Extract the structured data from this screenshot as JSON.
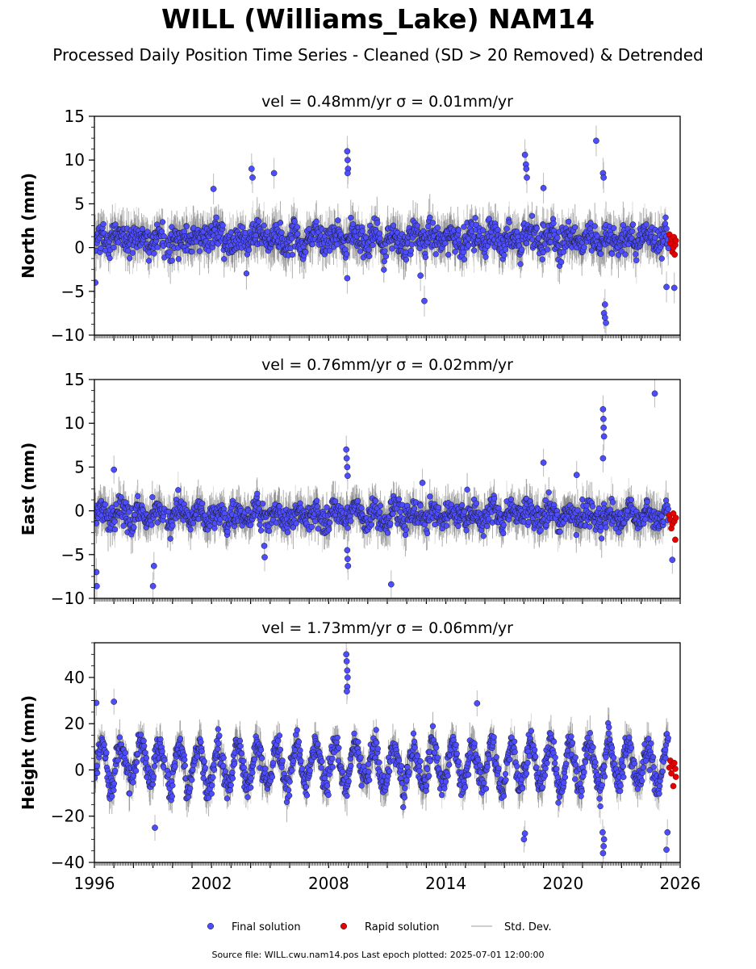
{
  "title": "WILL (Williams_Lake) NAM14",
  "subtitle": "Processed Daily Position Time Series - Cleaned (SD > 20 Removed) & Detrended",
  "footer": "Source file: WILL.cwu.nam14.pos  Last epoch plotted: 2025-07-01 12:00:00",
  "colors": {
    "final": "#4d4dff",
    "rapid": "#e60000",
    "stddev": "#bdbdbd",
    "edge": "#1a1a1a"
  },
  "chart_data": [
    {
      "type": "scatter",
      "panel": "north",
      "title": "vel = 0.48mm/yr   σ = 0.01mm/yr",
      "ylabel": "North (mm)",
      "xlim": [
        1996,
        2026
      ],
      "ylim": [
        -10,
        15
      ],
      "yticks": [
        -10,
        -5,
        0,
        5,
        10,
        15
      ],
      "ytick_labels": [
        "−10",
        "−5",
        "0",
        "5",
        "10",
        "15"
      ],
      "noise": {
        "sd": 1.3,
        "seasonal_amp": 0.5,
        "mean": 1.0,
        "bar": 2.2
      },
      "outliers": [
        [
          2008.95,
          11.0
        ],
        [
          2008.97,
          10.0
        ],
        [
          2008.99,
          9.0
        ],
        [
          2008.97,
          8.5
        ],
        [
          2018.05,
          10.6
        ],
        [
          2018.1,
          9.5
        ],
        [
          2018.12,
          9.0
        ],
        [
          2018.15,
          8.0
        ],
        [
          2021.7,
          12.2
        ],
        [
          2022.05,
          8.5
        ],
        [
          2022.08,
          8.0
        ],
        [
          2004.05,
          9.0
        ],
        [
          2004.1,
          8.0
        ],
        [
          2005.2,
          8.5
        ],
        [
          2019.0,
          6.8
        ],
        [
          2002.1,
          6.7
        ],
        [
          2012.9,
          -6.1
        ],
        [
          2022.1,
          -7.5
        ],
        [
          2022.15,
          -8.0
        ],
        [
          2022.2,
          -8.6
        ],
        [
          2022.15,
          -6.5
        ],
        [
          2008.95,
          -3.5
        ],
        [
          2025.3,
          -4.5
        ],
        [
          1996.05,
          -4.0
        ],
        [
          2012.7,
          -3.2
        ],
        [
          2025.7,
          -4.6
        ]
      ],
      "rapid": {
        "x": [
          2025.45,
          2025.5,
          2025.55,
          2025.6,
          2025.65,
          2025.68,
          2025.72,
          2025.75,
          2025.78
        ],
        "y": [
          1.5,
          0.5,
          1.0,
          -0.5,
          0.0,
          1.2,
          -0.8,
          0.3,
          0.8
        ]
      }
    },
    {
      "type": "scatter",
      "panel": "east",
      "title": "vel = 0.76mm/yr   σ = 0.02mm/yr",
      "ylabel": "East (mm)",
      "xlim": [
        1996,
        2026
      ],
      "ylim": [
        -10,
        15
      ],
      "yticks": [
        -10,
        -5,
        0,
        5,
        10,
        15
      ],
      "ytick_labels": [
        "−10",
        "−5",
        "0",
        "5",
        "10",
        "15"
      ],
      "noise": {
        "sd": 1.1,
        "seasonal_amp": 0.6,
        "mean": -0.5,
        "bar": 2.0
      },
      "outliers": [
        [
          2022.05,
          11.6
        ],
        [
          2022.07,
          10.5
        ],
        [
          2022.08,
          9.5
        ],
        [
          2022.1,
          8.5
        ],
        [
          2022.05,
          6.0
        ],
        [
          2024.7,
          13.4
        ],
        [
          2008.9,
          7.0
        ],
        [
          2008.92,
          6.0
        ],
        [
          2008.95,
          5.0
        ],
        [
          2008.97,
          4.0
        ],
        [
          2008.95,
          -4.5
        ],
        [
          2008.97,
          -5.5
        ],
        [
          2008.99,
          -6.3
        ],
        [
          2004.7,
          -4.0
        ],
        [
          2004.72,
          -5.3
        ],
        [
          1996.1,
          -7.0
        ],
        [
          1996.12,
          -8.6
        ],
        [
          1999.0,
          -8.6
        ],
        [
          1999.05,
          -6.3
        ],
        [
          2011.2,
          -8.4
        ],
        [
          2025.6,
          -5.6
        ],
        [
          2019.0,
          5.5
        ],
        [
          2020.7,
          4.1
        ],
        [
          1997.0,
          4.7
        ],
        [
          2012.8,
          3.2
        ]
      ],
      "rapid": {
        "x": [
          2025.45,
          2025.5,
          2025.55,
          2025.6,
          2025.65,
          2025.7,
          2025.75,
          2025.78
        ],
        "y": [
          -0.5,
          -1.0,
          -2.0,
          -1.5,
          -0.3,
          -1.2,
          -3.3,
          -0.8
        ]
      }
    },
    {
      "type": "scatter",
      "panel": "height",
      "title": "vel = 1.73mm/yr   σ = 0.06mm/yr",
      "ylabel": "Height (mm)",
      "xlim": [
        1996,
        2026
      ],
      "ylim": [
        -40,
        55
      ],
      "yticks": [
        -40,
        -20,
        0,
        20,
        40
      ],
      "ytick_labels": [
        "−40",
        "−20",
        "0",
        "20",
        "40"
      ],
      "xticks": [
        1996,
        2002,
        2008,
        2014,
        2020,
        2026
      ],
      "xtick_labels": [
        "1996",
        "2002",
        "2008",
        "2014",
        "2020",
        "2026"
      ],
      "noise": {
        "sd": 4.5,
        "seasonal_amp": 9.0,
        "mean": 2.0,
        "bar": 7.0
      },
      "outliers": [
        [
          2008.9,
          50.0
        ],
        [
          2008.92,
          47.0
        ],
        [
          2008.95,
          43.0
        ],
        [
          2008.97,
          40.0
        ],
        [
          2008.95,
          36.0
        ],
        [
          2008.93,
          34.0
        ],
        [
          2022.05,
          -36.0
        ],
        [
          2022.08,
          -33.0
        ],
        [
          2022.1,
          -30.0
        ],
        [
          2022.03,
          -27.0
        ],
        [
          2025.3,
          -34.5
        ],
        [
          2025.35,
          -27.0
        ],
        [
          2018.0,
          -30.0
        ],
        [
          2018.05,
          -27.5
        ],
        [
          1996.1,
          29.0
        ],
        [
          1997.0,
          29.5
        ],
        [
          2015.6,
          28.8
        ],
        [
          1999.1,
          -25.0
        ]
      ],
      "rapid": {
        "x": [
          2025.45,
          2025.5,
          2025.55,
          2025.6,
          2025.65,
          2025.7,
          2025.75,
          2025.78
        ],
        "y": [
          1.0,
          4.0,
          -1.5,
          2.5,
          -7.0,
          3.0,
          0.5,
          -3.0
        ]
      }
    }
  ],
  "legend": [
    {
      "label": "Final solution",
      "marker": "final"
    },
    {
      "label": "Rapid solution",
      "marker": "rapid"
    },
    {
      "label": "Std. Dev.",
      "marker": "stddev"
    }
  ]
}
